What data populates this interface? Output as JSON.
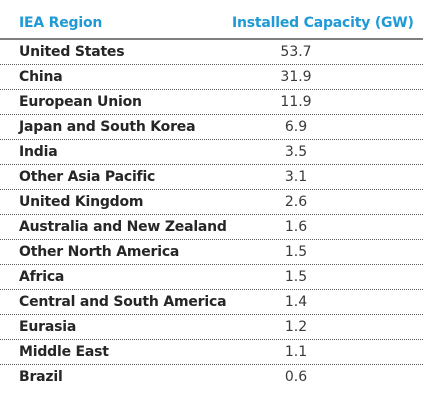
{
  "chart_data": {
    "type": "table",
    "columns": [
      "IEA Region",
      "Installed Capacity (GW)"
    ],
    "rows": [
      {
        "region": "United States",
        "value": "53.7"
      },
      {
        "region": "China",
        "value": "31.9"
      },
      {
        "region": "European Union",
        "value": "11.9"
      },
      {
        "region": "Japan and South Korea",
        "value": "6.9"
      },
      {
        "region": "India",
        "value": "3.5"
      },
      {
        "region": "Other Asia Pacific",
        "value": "3.1"
      },
      {
        "region": "United Kingdom",
        "value": "2.6"
      },
      {
        "region": "Australia and New Zealand",
        "value": "1.6"
      },
      {
        "region": "Other North America",
        "value": "1.5"
      },
      {
        "region": "Africa",
        "value": "1.5"
      },
      {
        "region": "Central and South America",
        "value": "1.4"
      },
      {
        "region": "Eurasia",
        "value": "1.2"
      },
      {
        "region": "Middle East",
        "value": "1.1"
      },
      {
        "region": "Brazil",
        "value": "0.6"
      }
    ],
    "colors": {
      "header_text": "#1f9ad6",
      "body_text": "#262626",
      "rule": "#7f7f7f"
    }
  }
}
